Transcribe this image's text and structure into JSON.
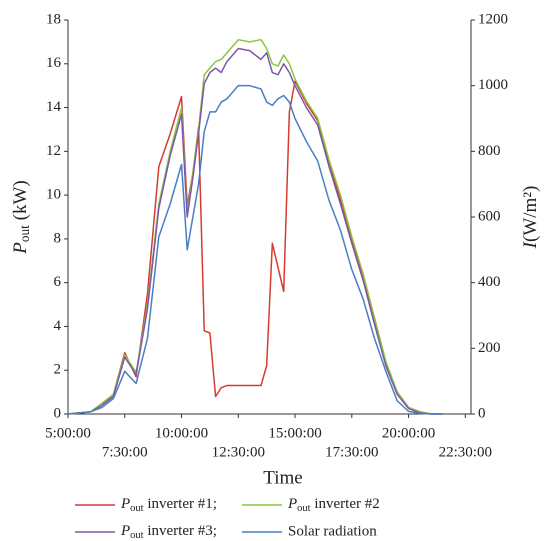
{
  "chart_data": {
    "type": "line",
    "x_label": "Time",
    "y_label": "Pout (kW)",
    "y2_label": "I(W/m²)",
    "x": [
      5.0,
      5.5,
      6.0,
      6.5,
      7.0,
      7.5,
      8.0,
      8.5,
      9.0,
      9.5,
      10.0,
      10.25,
      10.5,
      10.75,
      11.0,
      11.25,
      11.5,
      11.75,
      12.0,
      12.5,
      13.0,
      13.5,
      13.75,
      14.0,
      14.25,
      14.5,
      14.75,
      15.0,
      15.5,
      16.0,
      16.5,
      17.0,
      17.5,
      18.0,
      18.5,
      19.0,
      19.5,
      20.0,
      20.5,
      21.0,
      21.5
    ],
    "xlim": [
      5,
      22.75
    ],
    "xticks": [
      {
        "value": 5,
        "label": "5:00:00"
      },
      {
        "value": 7.5,
        "label": "7:30:00"
      },
      {
        "value": 10,
        "label": "10:00:00"
      },
      {
        "value": 12.5,
        "label": "12:30:00"
      },
      {
        "value": 15,
        "label": "15:00:00"
      },
      {
        "value": 17.5,
        "label": "17:30:00"
      },
      {
        "value": 20,
        "label": "20:00:00"
      },
      {
        "value": 22.5,
        "label": "22:30:00"
      }
    ],
    "ylim": [
      0,
      18
    ],
    "yticks": [
      0,
      2,
      4,
      6,
      8,
      10,
      12,
      14,
      16,
      18
    ],
    "y2lim": [
      0,
      1200
    ],
    "y2ticks": [
      0,
      200,
      400,
      600,
      800,
      1000,
      1200
    ],
    "series": [
      {
        "name": "Pout inverter #1;",
        "color": "#d63a30",
        "values": [
          0,
          0.05,
          0.1,
          0.4,
          0.9,
          2.8,
          1.7,
          5.5,
          11.3,
          12.8,
          14.5,
          9.5,
          11,
          13.1,
          3.8,
          3.7,
          0.8,
          1.2,
          1.3,
          1.3,
          1.3,
          1.3,
          2.2,
          7.8,
          6.7,
          5.6,
          13.8,
          15.2,
          14.2,
          13.4,
          11.5,
          9.8,
          8.0,
          6.2,
          4.2,
          2.3,
          1.0,
          0.3,
          0.1,
          0,
          0
        ]
      },
      {
        "name": "Pout inverter #2",
        "color": "#8cc640",
        "values": [
          0,
          0.05,
          0.1,
          0.5,
          0.9,
          2.7,
          1.9,
          5.0,
          9.6,
          12.0,
          14.0,
          9.2,
          11,
          13,
          15.5,
          15.8,
          16.1,
          16.2,
          16.5,
          17.1,
          17.0,
          17.1,
          16.7,
          16.0,
          15.9,
          16.4,
          16.0,
          15.3,
          14.3,
          13.5,
          11.6,
          10.0,
          8.1,
          6.4,
          4.4,
          2.4,
          1.0,
          0.3,
          0.1,
          0,
          0
        ]
      },
      {
        "name": "Pout inverter #3;",
        "color": "#7d58a9",
        "values": [
          0,
          0.05,
          0.1,
          0.4,
          0.8,
          2.6,
          1.8,
          4.8,
          9.4,
          11.8,
          13.7,
          9.0,
          10.8,
          12.8,
          15.1,
          15.6,
          15.8,
          15.6,
          16.1,
          16.7,
          16.6,
          16.2,
          16.5,
          15.6,
          15.5,
          16.0,
          15.6,
          15.0,
          14.0,
          13.2,
          11.3,
          9.6,
          7.8,
          6.1,
          4.1,
          2.2,
          0.9,
          0.25,
          0.05,
          0,
          0
        ]
      },
      {
        "name": "Solar radiation",
        "color": "#4a7ec4",
        "axis": "y2",
        "values": [
          0,
          3,
          7,
          20,
          47,
          130,
          93,
          230,
          540,
          640,
          760,
          500,
          600,
          700,
          860,
          920,
          920,
          950,
          960,
          1000,
          1000,
          990,
          950,
          940,
          960,
          970,
          950,
          900,
          830,
          770,
          650,
          560,
          440,
          350,
          230,
          130,
          40,
          8,
          2,
          0,
          0
        ]
      }
    ]
  }
}
